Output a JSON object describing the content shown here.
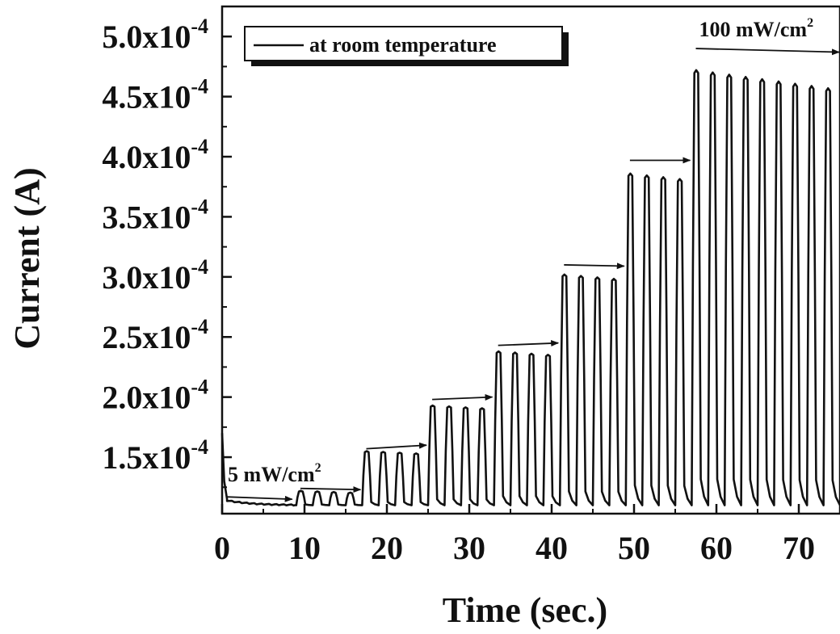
{
  "chart_data": {
    "type": "line",
    "xlabel": "Time (sec.)",
    "ylabel": "Current (A)",
    "xlim": [
      0,
      75
    ],
    "ylim": [
      0.000103,
      0.000525
    ],
    "x_ticks": [
      {
        "value": 0,
        "label": "0"
      },
      {
        "value": 10,
        "label": "10"
      },
      {
        "value": 20,
        "label": "20"
      },
      {
        "value": 30,
        "label": "30"
      },
      {
        "value": 40,
        "label": "40"
      },
      {
        "value": 50,
        "label": "50"
      },
      {
        "value": 60,
        "label": "60"
      },
      {
        "value": 70,
        "label": "70"
      }
    ],
    "y_ticks": [
      {
        "value": 0.00015,
        "mantissa": "1.5x10",
        "exponent": "-4"
      },
      {
        "value": 0.0002,
        "mantissa": "2.0x10",
        "exponent": "-4"
      },
      {
        "value": 0.00025,
        "mantissa": "2.5x10",
        "exponent": "-4"
      },
      {
        "value": 0.0003,
        "mantissa": "3.0x10",
        "exponent": "-4"
      },
      {
        "value": 0.00035,
        "mantissa": "3.5x10",
        "exponent": "-4"
      },
      {
        "value": 0.0004,
        "mantissa": "4.0x10",
        "exponent": "-4"
      },
      {
        "value": 0.00045,
        "mantissa": "4.5x10",
        "exponent": "-4"
      },
      {
        "value": 0.0005,
        "mantissa": "5.0x10",
        "exponent": "-4"
      }
    ],
    "legend": {
      "position": "top-left",
      "entries": [
        "at room temperature"
      ]
    },
    "dark_current": 0.00011,
    "initial_spike": 0.00017,
    "cycle_period": 2,
    "groups": [
      {
        "start": 1,
        "end": 8.5,
        "peak": 0.00011,
        "cycles": 0
      },
      {
        "start": 9,
        "end": 16.5,
        "peak": 0.000122,
        "cycles": 4
      },
      {
        "start": 17,
        "end": 24.5,
        "peak": 0.000155,
        "cycles": 4
      },
      {
        "start": 25,
        "end": 32.5,
        "peak": 0.000193,
        "cycles": 4
      },
      {
        "start": 33,
        "end": 40.5,
        "peak": 0.000238,
        "cycles": 4
      },
      {
        "start": 41,
        "end": 48.5,
        "peak": 0.000302,
        "cycles": 4
      },
      {
        "start": 49,
        "end": 56.5,
        "peak": 0.000386,
        "cycles": 4
      },
      {
        "start": 57,
        "end": 75,
        "peak": 0.000472,
        "cycles": 9
      }
    ],
    "annotations": [
      {
        "text": "5 mW/cm",
        "sup": "2",
        "x": 0.3,
        "y": 0.00013
      },
      {
        "text": "100 mW/cm",
        "sup": "2",
        "x": 57.5,
        "y": 0.0005
      }
    ],
    "arrows": [
      {
        "x1": 0.5,
        "x2": 8.5,
        "y1": 0.000117,
        "y2": 0.000115
      },
      {
        "x1": 9.5,
        "x2": 16.8,
        "y1": 0.000124,
        "y2": 0.000123
      },
      {
        "x1": 17.5,
        "x2": 24.8,
        "y1": 0.000157,
        "y2": 0.00016
      },
      {
        "x1": 25.5,
        "x2": 32.8,
        "y1": 0.000198,
        "y2": 0.0002
      },
      {
        "x1": 33.5,
        "x2": 40.8,
        "y1": 0.000243,
        "y2": 0.000245
      },
      {
        "x1": 41.5,
        "x2": 48.8,
        "y1": 0.00031,
        "y2": 0.000309
      },
      {
        "x1": 49.5,
        "x2": 56.8,
        "y1": 0.000397,
        "y2": 0.000397
      },
      {
        "x1": 57.5,
        "x2": 74.9,
        "y1": 0.00049,
        "y2": 0.000487
      }
    ]
  }
}
